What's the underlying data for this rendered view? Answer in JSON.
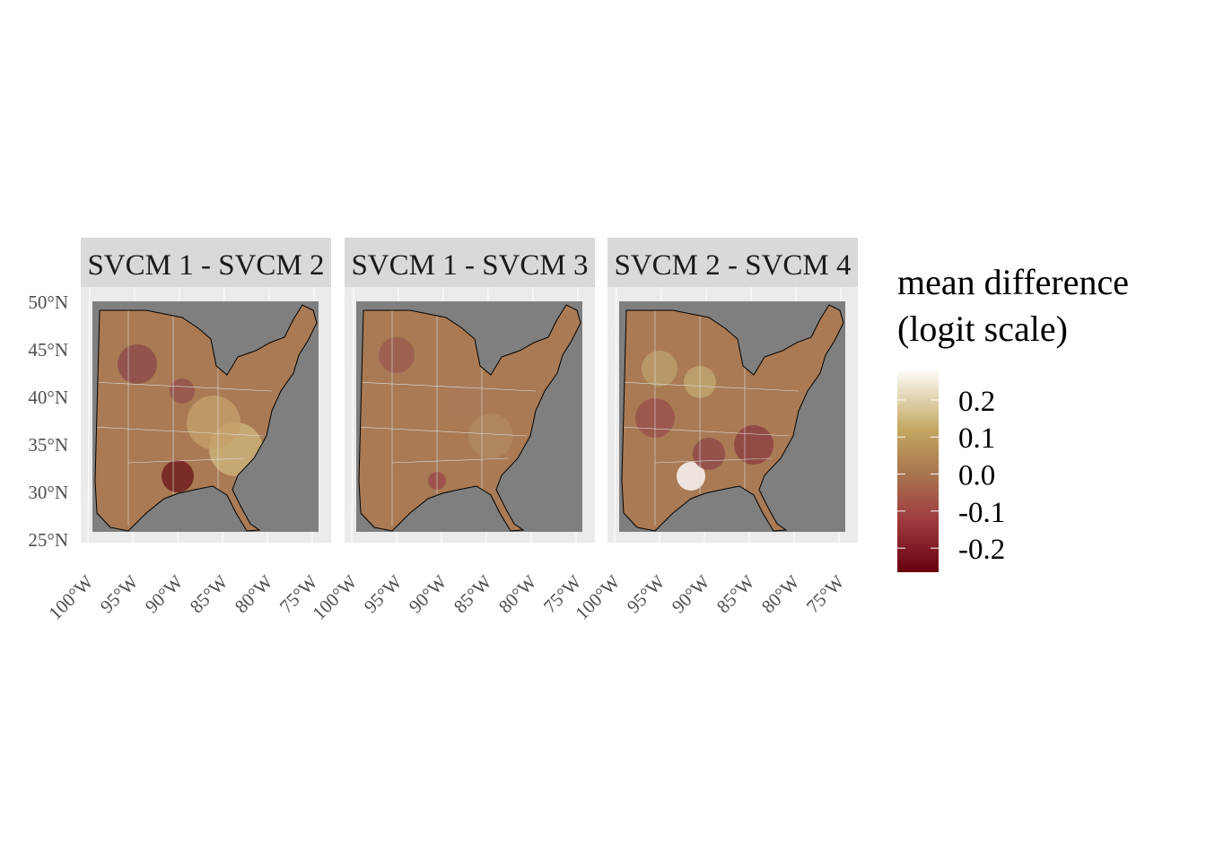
{
  "panels": [
    {
      "title": "SVCM 1 - SVCM 2"
    },
    {
      "title": "SVCM 1 - SVCM 3"
    },
    {
      "title": "SVCM 2 - SVCM 4"
    }
  ],
  "lat_labels": [
    "50°N",
    "45°N",
    "40°N",
    "35°N",
    "30°N",
    "25°N"
  ],
  "lon_labels": [
    "100°W",
    "95°W",
    "90°W",
    "85°W",
    "80°W",
    "75°W"
  ],
  "legend": {
    "title": [
      "mean difference",
      "(logit scale)"
    ],
    "range": [
      -0.265,
      0.287
    ],
    "ticks": [
      {
        "value": 0.2,
        "label": "0.2"
      },
      {
        "value": 0.1,
        "label": "0.1"
      },
      {
        "value": 0,
        "label": "0.0"
      },
      {
        "value": -0.1,
        "label": "-0.1"
      },
      {
        "value": -0.2,
        "label": "-0.2"
      }
    ]
  }
}
